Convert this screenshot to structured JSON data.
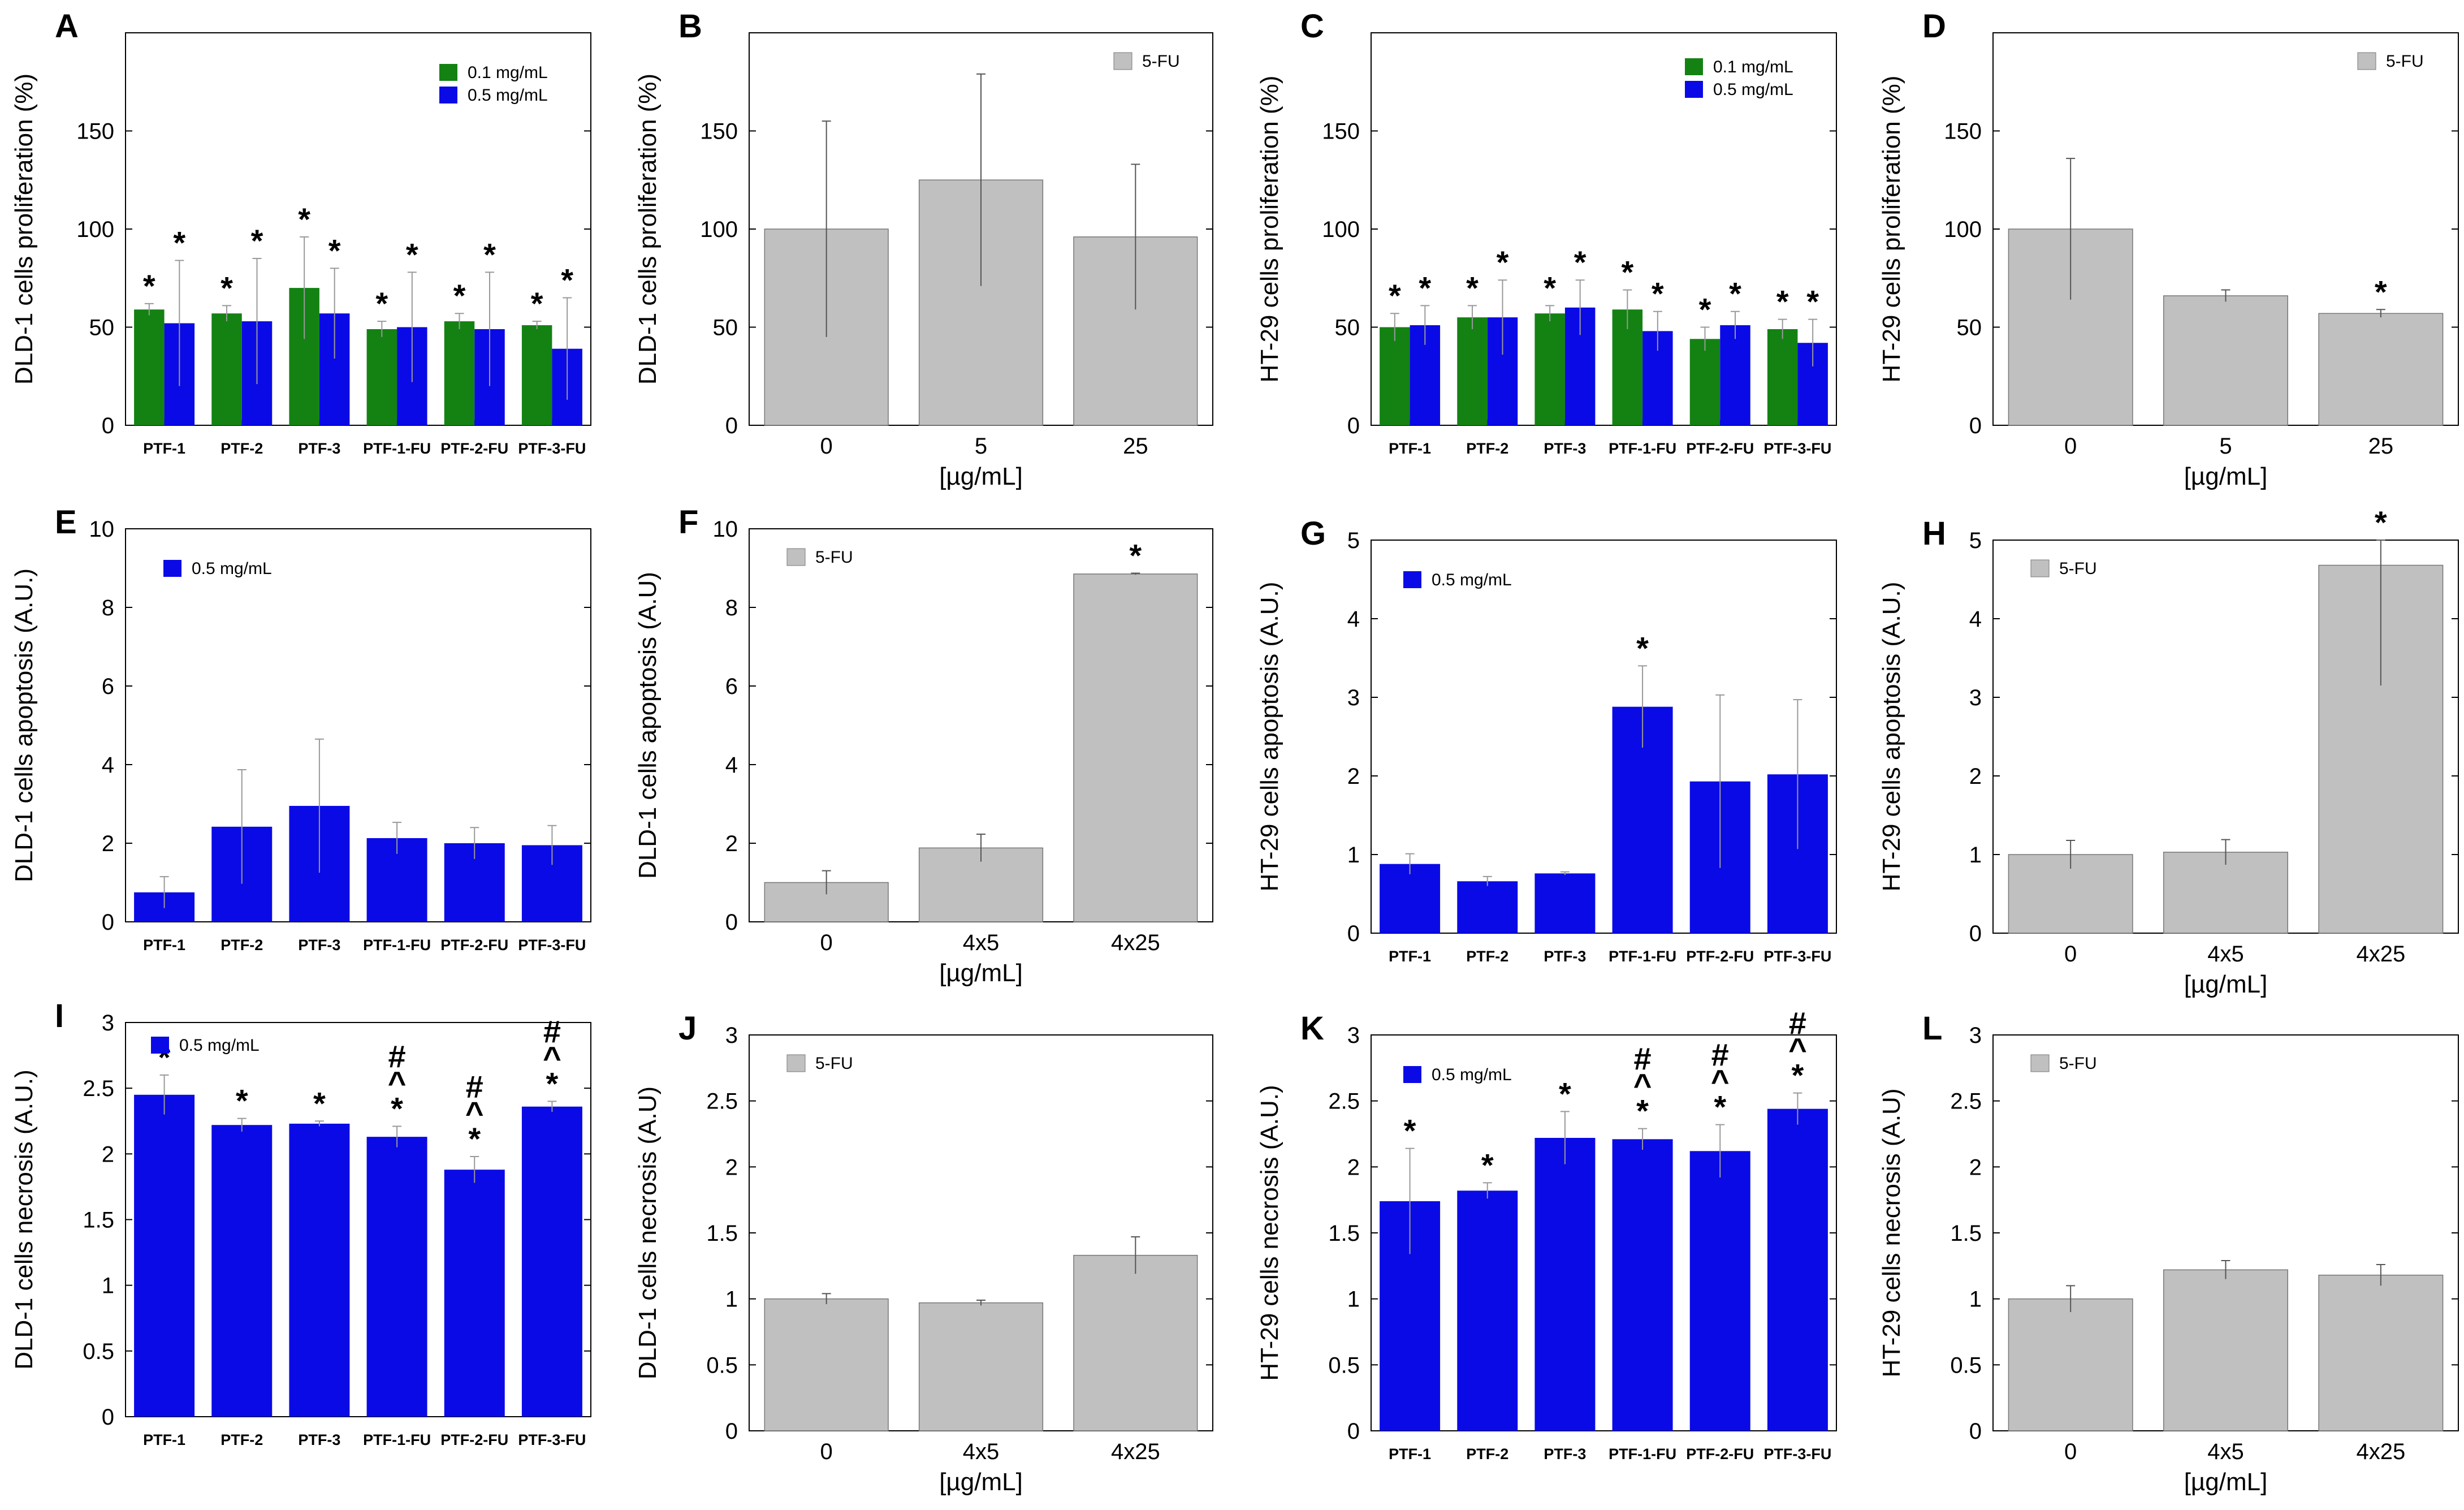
{
  "colors": {
    "green": "#138213",
    "blue": "#0a0ae6",
    "gray": "#c0c0c0"
  },
  "chart_data": [
    {
      "id": "A",
      "panel_label": "A",
      "type": "bar",
      "ylabel": "DLD-1 cells proliferation (%)",
      "xlabel": "",
      "ylim": [
        0,
        200
      ],
      "yticks": [
        "0",
        "50",
        "100",
        "150"
      ],
      "categories": [
        "PTF-1",
        "PTF-2",
        "PTF-3",
        "PTF-1-FU",
        "PTF-2-FU",
        "PTF-3-FU"
      ],
      "series": [
        {
          "name": "0.1 mg/mL",
          "color": "green",
          "values": [
            59,
            57,
            70,
            49,
            53,
            51
          ],
          "errors": [
            3,
            4,
            26,
            4,
            4,
            2
          ],
          "marks": [
            "*",
            "*",
            "*",
            "*",
            "*",
            "*"
          ]
        },
        {
          "name": "0.5 mg/mL",
          "color": "blue",
          "values": [
            52,
            53,
            57,
            50,
            49,
            39
          ],
          "errors": [
            32,
            32,
            23,
            28,
            29,
            26
          ],
          "marks": [
            "*",
            "*",
            "*",
            "*",
            "*",
            "*"
          ]
        }
      ]
    },
    {
      "id": "B",
      "panel_label": "B",
      "type": "bar",
      "ylabel": "DLD-1 cells proliferation (%)",
      "xlabel": "[µg/mL]",
      "ylim": [
        0,
        200
      ],
      "yticks": [
        "0",
        "50",
        "100",
        "150"
      ],
      "categories": [
        "0",
        "5",
        "25"
      ],
      "series": [
        {
          "name": "5-FU",
          "color": "gray",
          "values": [
            100,
            125,
            96
          ],
          "errors": [
            55,
            54,
            37
          ],
          "marks": [
            "",
            "",
            ""
          ]
        }
      ]
    },
    {
      "id": "C",
      "panel_label": "C",
      "type": "bar",
      "ylabel": "HT-29 cells proliferation (%)",
      "xlabel": "",
      "ylim": [
        0,
        200
      ],
      "yticks": [
        "0",
        "50",
        "100",
        "150"
      ],
      "categories": [
        "PTF-1",
        "PTF-2",
        "PTF-3",
        "PTF-1-FU",
        "PTF-2-FU",
        "PTF-3-FU"
      ],
      "series": [
        {
          "name": "0.1 mg/mL",
          "color": "green",
          "values": [
            50,
            55,
            57,
            59,
            44,
            49
          ],
          "errors": [
            7,
            6,
            4,
            10,
            6,
            5
          ],
          "marks": [
            "*",
            "*",
            "*",
            "*",
            "*",
            "*"
          ]
        },
        {
          "name": "0.5 mg/mL",
          "color": "blue",
          "values": [
            51,
            55,
            60,
            48,
            51,
            42
          ],
          "errors": [
            10,
            19,
            14,
            10,
            7,
            12
          ],
          "marks": [
            "*",
            "*",
            "*",
            "*",
            "*",
            "*"
          ]
        }
      ]
    },
    {
      "id": "D",
      "panel_label": "D",
      "type": "bar",
      "ylabel": "HT-29 cells proliferation (%)",
      "xlabel": "[µg/mL]",
      "ylim": [
        0,
        200
      ],
      "yticks": [
        "0",
        "50",
        "100",
        "150"
      ],
      "categories": [
        "0",
        "5",
        "25"
      ],
      "series": [
        {
          "name": "5-FU",
          "color": "gray",
          "values": [
            100,
            66,
            57
          ],
          "errors": [
            36,
            3,
            2
          ],
          "marks": [
            "",
            "",
            "*"
          ]
        }
      ]
    },
    {
      "id": "E",
      "panel_label": "E",
      "type": "bar",
      "ylabel": "DLD-1 cells apoptosis (A.U.)",
      "xlabel": "",
      "ylim": [
        0,
        10
      ],
      "yticks": [
        "0",
        "2",
        "4",
        "6",
        "8",
        "10"
      ],
      "categories": [
        "PTF-1",
        "PTF-2",
        "PTF-3",
        "PTF-1-FU",
        "PTF-2-FU",
        "PTF-3-FU"
      ],
      "series": [
        {
          "name": "0.5 mg/mL",
          "color": "blue",
          "values": [
            0.75,
            2.42,
            2.95,
            2.13,
            2.0,
            1.95
          ],
          "errors": [
            0.4,
            1.45,
            1.7,
            0.4,
            0.4,
            0.5
          ],
          "marks": [
            "",
            "",
            "",
            "",
            "",
            ""
          ]
        }
      ]
    },
    {
      "id": "F",
      "panel_label": "F",
      "type": "bar",
      "ylabel": "DLD-1 cells apoptosis (A.U)",
      "xlabel": "[µg/mL]",
      "ylim": [
        0,
        10
      ],
      "yticks": [
        "0",
        "2",
        "4",
        "6",
        "8",
        "10"
      ],
      "categories": [
        "0",
        "4x5",
        "4x25"
      ],
      "series": [
        {
          "name": "5-FU",
          "color": "gray",
          "values": [
            1.0,
            1.88,
            8.85
          ],
          "errors": [
            0.3,
            0.35,
            0.02
          ],
          "marks": [
            "",
            "",
            "*"
          ]
        }
      ]
    },
    {
      "id": "G",
      "panel_label": "G",
      "type": "bar",
      "ylabel": "HT-29 cells apoptosis (A.U.)",
      "xlabel": "",
      "ylim": [
        0,
        5
      ],
      "yticks": [
        "0",
        "1",
        "2",
        "3",
        "4",
        "5"
      ],
      "categories": [
        "PTF-1",
        "PTF-2",
        "PTF-3",
        "PTF-1-FU",
        "PTF-2-FU",
        "PTF-3-FU"
      ],
      "series": [
        {
          "name": "0.5 mg/mL",
          "color": "blue",
          "values": [
            0.88,
            0.66,
            0.76,
            2.88,
            1.93,
            2.02
          ],
          "errors": [
            0.13,
            0.06,
            0.02,
            0.52,
            1.1,
            0.95
          ],
          "marks": [
            "",
            "",
            "",
            "*",
            "",
            ""
          ]
        }
      ]
    },
    {
      "id": "H",
      "panel_label": "H",
      "type": "bar",
      "ylabel": "HT-29 cells apoptosis (A.U.)",
      "xlabel": "[µg/mL]",
      "ylim": [
        0,
        5
      ],
      "yticks": [
        "0",
        "1",
        "2",
        "3",
        "4",
        "5"
      ],
      "categories": [
        "0",
        "4x5",
        "4x25"
      ],
      "series": [
        {
          "name": "5-FU",
          "color": "gray",
          "values": [
            1.0,
            1.03,
            4.68
          ],
          "errors": [
            0.18,
            0.16,
            1.53
          ],
          "marks": [
            "",
            "",
            "*"
          ]
        }
      ]
    },
    {
      "id": "I",
      "panel_label": "I",
      "type": "bar",
      "ylabel": "DLD-1 cells necrosis (A.U.)",
      "xlabel": "",
      "ylim": [
        0,
        3
      ],
      "yticks": [
        "0",
        "0.5",
        "1",
        "1.5",
        "2",
        "2.5",
        "3"
      ],
      "categories": [
        "PTF-1",
        "PTF-2",
        "PTF-3",
        "PTF-1-FU",
        "PTF-2-FU",
        "PTF-3-FU"
      ],
      "series": [
        {
          "name": "0.5 mg/mL",
          "color": "blue",
          "values": [
            2.45,
            2.22,
            2.23,
            2.13,
            1.88,
            2.36
          ],
          "errors": [
            0.15,
            0.05,
            0.02,
            0.08,
            0.1,
            0.04
          ],
          "marks": [
            "*",
            "*",
            "*",
            "#\n^\n*",
            "#\n^\n*",
            "#\n^\n*"
          ]
        }
      ]
    },
    {
      "id": "J",
      "panel_label": "J",
      "type": "bar",
      "ylabel": "DLD-1 cells necrosis (A.U)",
      "xlabel": "[µg/mL]",
      "ylim": [
        0,
        3
      ],
      "yticks": [
        "0",
        "0.5",
        "1",
        "1.5",
        "2",
        "2.5",
        "3"
      ],
      "categories": [
        "0",
        "4x5",
        "4x25"
      ],
      "series": [
        {
          "name": "5-FU",
          "color": "gray",
          "values": [
            1.0,
            0.97,
            1.33
          ],
          "errors": [
            0.04,
            0.02,
            0.14
          ],
          "marks": [
            "",
            "",
            ""
          ]
        }
      ]
    },
    {
      "id": "K",
      "panel_label": "K",
      "type": "bar",
      "ylabel": "HT-29 cells necrosis (A.U.)",
      "xlabel": "",
      "ylim": [
        0,
        3
      ],
      "yticks": [
        "0",
        "0.5",
        "1",
        "1.5",
        "2",
        "2.5",
        "3"
      ],
      "categories": [
        "PTF-1",
        "PTF-2",
        "PTF-3",
        "PTF-1-FU",
        "PTF-2-FU",
        "PTF-3-FU"
      ],
      "series": [
        {
          "name": "0.5 mg/mL",
          "color": "blue",
          "values": [
            1.74,
            1.82,
            2.22,
            2.21,
            2.12,
            2.44
          ],
          "errors": [
            0.4,
            0.06,
            0.2,
            0.08,
            0.2,
            0.12
          ],
          "marks": [
            "*",
            "*",
            "*",
            "#\n^\n*",
            "#\n^\n*",
            "#\n^\n*"
          ]
        }
      ]
    },
    {
      "id": "L",
      "panel_label": "L",
      "type": "bar",
      "ylabel": "HT-29 cells necrosis (A.U)",
      "xlabel": "[µg/mL]",
      "ylim": [
        0,
        3
      ],
      "yticks": [
        "0",
        "0.5",
        "1",
        "1.5",
        "2",
        "2.5",
        "3"
      ],
      "categories": [
        "0",
        "4x5",
        "4x25"
      ],
      "series": [
        {
          "name": "5-FU",
          "color": "gray",
          "values": [
            1.0,
            1.22,
            1.18
          ],
          "errors": [
            0.1,
            0.07,
            0.08
          ],
          "marks": [
            "",
            "",
            ""
          ]
        }
      ]
    }
  ]
}
